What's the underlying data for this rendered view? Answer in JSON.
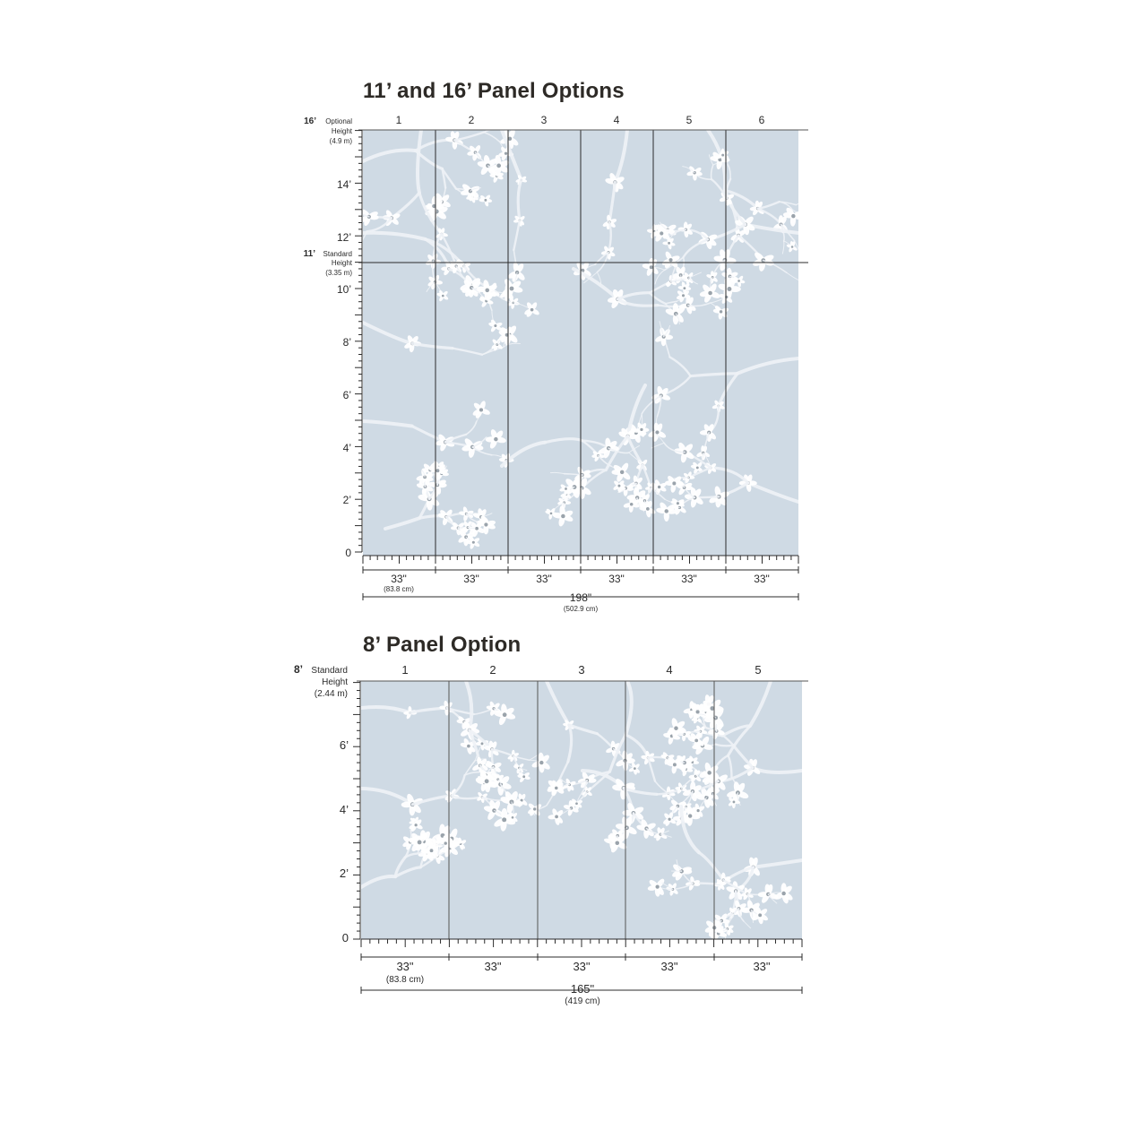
{
  "top_option": {
    "title": "11’ and 16’ Panel Options",
    "panel_numbers": [
      "1",
      "2",
      "3",
      "4",
      "5",
      "6"
    ],
    "height_marks": [
      {
        "feet": "16’",
        "label": "Optional",
        "label2": "Height",
        "metric": "(4.9 m)"
      },
      {
        "feet": "11’",
        "label": "Standard",
        "label2": "Height",
        "metric": "(3.35 m)"
      }
    ],
    "axis_labels": [
      "14’",
      "12’",
      "10’",
      "8’",
      "6’",
      "4’",
      "2’",
      "0"
    ],
    "panel_widths": [
      "33\"",
      "33\"",
      "33\"",
      "33\"",
      "33\"",
      "33\""
    ],
    "panel_width_metric": "(83.8 cm)",
    "total_width": "198\"",
    "total_width_metric": "(502.9 cm)"
  },
  "bottom_option": {
    "title": "8’ Panel Option",
    "panel_numbers": [
      "1",
      "2",
      "3",
      "4",
      "5"
    ],
    "height_mark": {
      "feet": "8’",
      "label": "Standard",
      "label2": "Height",
      "metric": "(2.44 m)"
    },
    "axis_labels": [
      "6’",
      "4’",
      "2’",
      "0"
    ],
    "panel_widths": [
      "33\"",
      "33\"",
      "33\"",
      "33\"",
      "33\""
    ],
    "panel_width_metric": "(83.8 cm)",
    "total_width": "165\"",
    "total_width_metric": "(419 cm)"
  },
  "colors": {
    "wallpaper": "#cfdae4",
    "flower": "#ffffff",
    "branch": "#eef2f6",
    "line": "#2b2b2b"
  }
}
